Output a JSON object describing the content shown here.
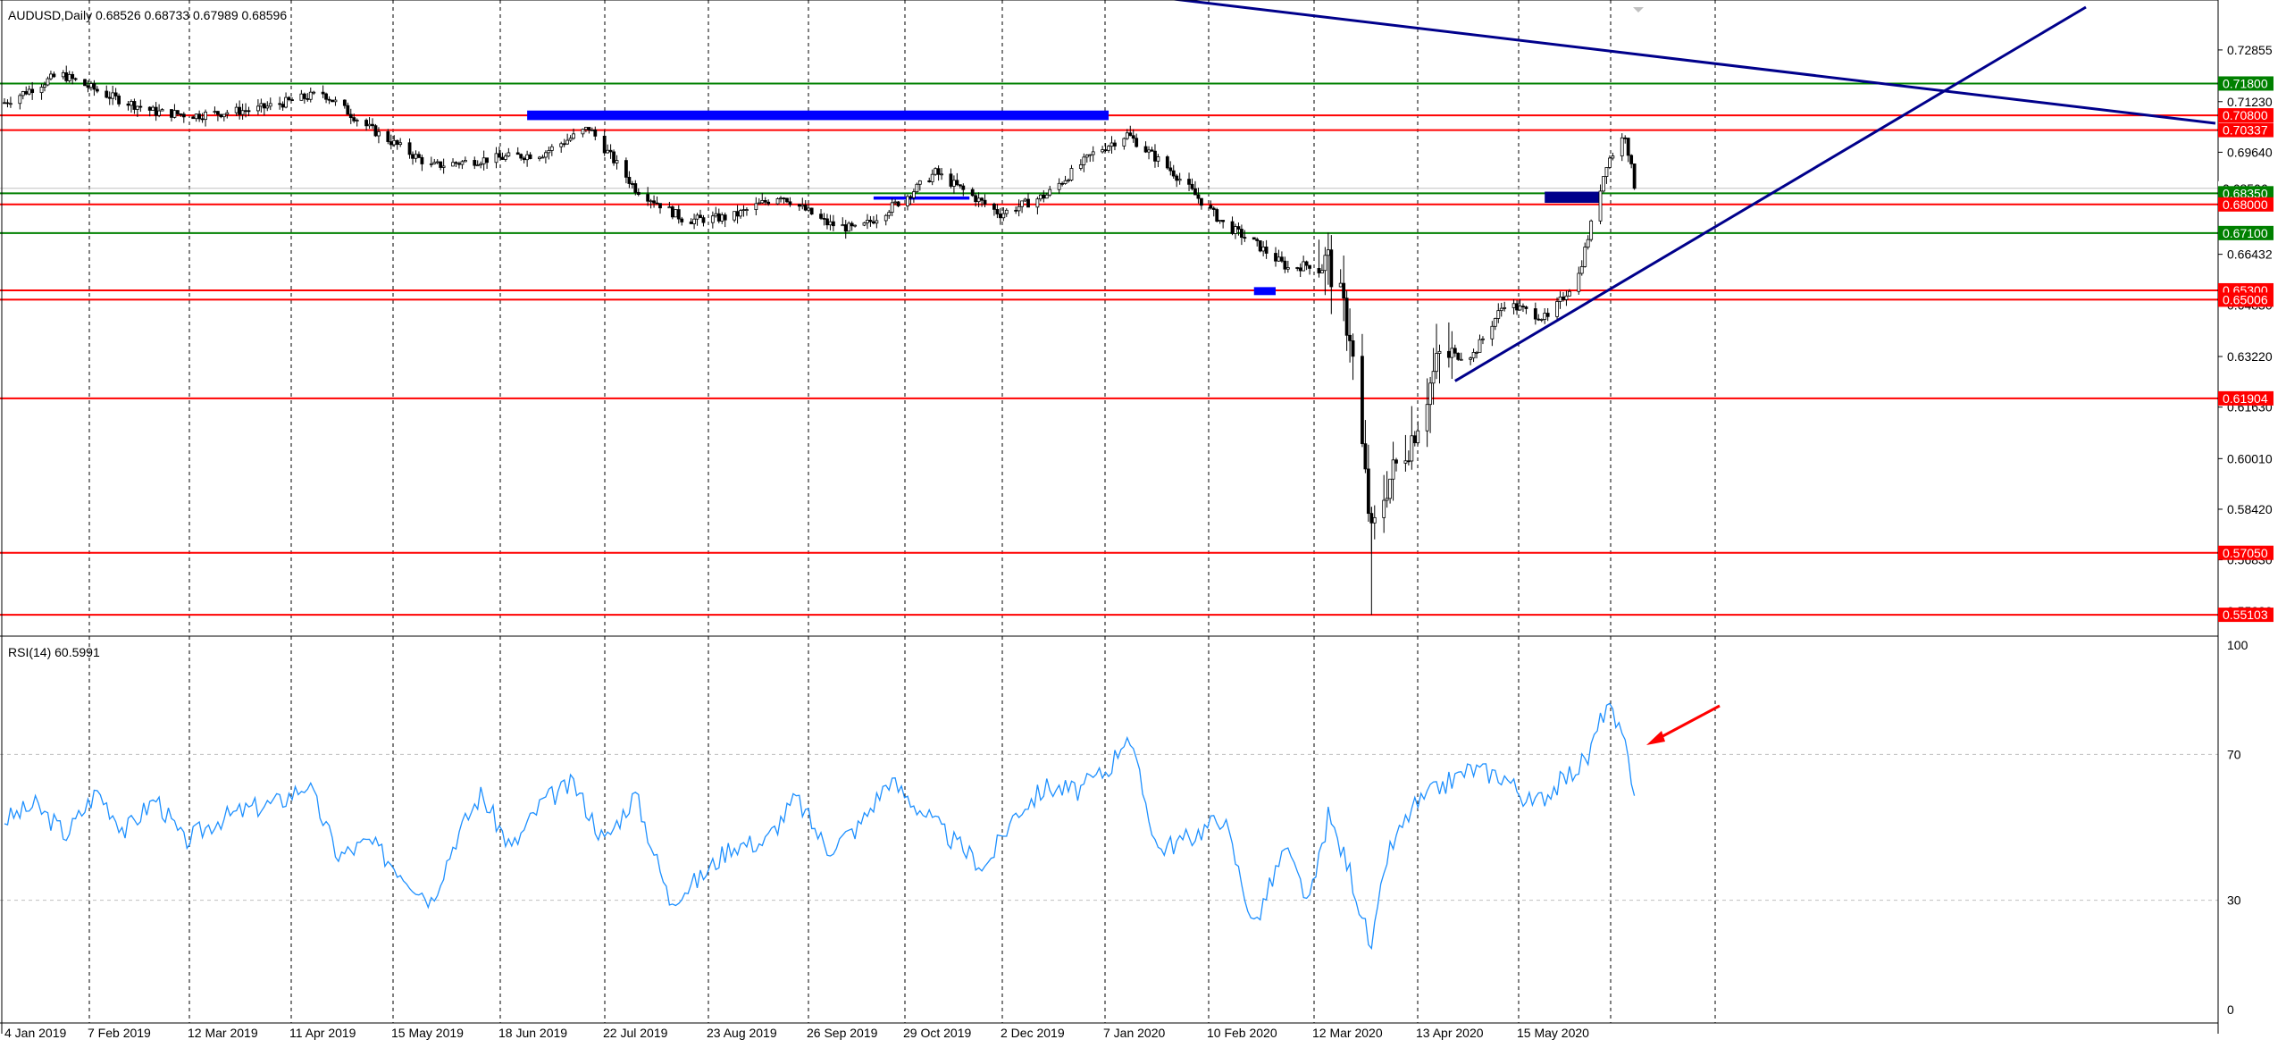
{
  "header": {
    "symbol_line": "AUDUSD,Daily  0.68526 0.68733 0.67989 0.68596"
  },
  "rsi_header": "RSI(14) 60.5991",
  "colors": {
    "background": "#ffffff",
    "candle": "#000000",
    "red_level": "#ff0000",
    "green_level": "#008000",
    "trendline": "#00008b",
    "zone": "#0000ff",
    "rsi_line": "#1e90ff",
    "grid": "#000000",
    "arrow": "#ff0000"
  },
  "icons": [
    "arrow-annotation"
  ],
  "chart_data": [
    {
      "type": "candlestick",
      "title": "AUDUSD,Daily  0.68526 0.68733 0.67989 0.68596",
      "ylim": [
        0.546,
        0.742
      ],
      "yticks": [
        "0.72855",
        "0.71230",
        "0.69640",
        "0.68050",
        "0.66432",
        "0.64830",
        "0.63220",
        "0.61630",
        "0.60010",
        "0.58420",
        "0.56830",
        "0.55220"
      ],
      "xticks": [
        "4 Jan 2019",
        "7 Feb 2019",
        "12 Mar 2019",
        "11 Apr 2019",
        "15 May 2019",
        "18 Jun 2019",
        "22 Jul 2019",
        "23 Aug 2019",
        "26 Sep 2019",
        "29 Oct 2019",
        "2 Dec 2019",
        "7 Jan 2020",
        "10 Feb 2020",
        "12 Mar 2020",
        "13 Apr 2020",
        "15 May 2020"
      ],
      "series": [
        {
          "kind": "close-keypoints",
          "x": [
            "2019-01-02",
            "2019-01-20",
            "2019-02-05",
            "2019-02-20",
            "2019-03-05",
            "2019-03-25",
            "2019-04-15",
            "2019-04-30",
            "2019-05-20",
            "2019-06-05",
            "2019-06-25",
            "2019-07-10",
            "2019-07-25",
            "2019-08-10",
            "2019-08-25",
            "2019-09-10",
            "2019-09-25",
            "2019-10-05",
            "2019-10-20",
            "2019-10-30",
            "2019-11-20",
            "2019-12-05",
            "2019-12-20",
            "2019-12-31",
            "2020-01-15",
            "2020-01-31",
            "2020-02-10",
            "2020-02-21",
            "2020-03-05",
            "2020-03-12",
            "2020-03-19",
            "2020-03-24",
            "2020-04-01",
            "2020-04-10",
            "2020-04-21",
            "2020-05-01",
            "2020-05-15",
            "2020-05-25",
            "2020-06-03",
            "2020-06-09",
            "2020-06-12"
          ],
          "values": [
            0.712,
            0.721,
            0.714,
            0.709,
            0.708,
            0.71,
            0.715,
            0.704,
            0.692,
            0.694,
            0.696,
            0.704,
            0.685,
            0.675,
            0.676,
            0.683,
            0.674,
            0.672,
            0.682,
            0.69,
            0.677,
            0.683,
            0.696,
            0.702,
            0.69,
            0.674,
            0.668,
            0.66,
            0.662,
            0.64,
            0.575,
            0.592,
            0.607,
            0.632,
            0.633,
            0.649,
            0.644,
            0.658,
            0.693,
            0.702,
            0.686
          ]
        }
      ],
      "horizontal_levels": {
        "red": [
          "0.70800",
          "0.70337",
          "0.68000",
          "0.65300",
          "0.65006",
          "0.61904",
          "0.57050",
          "0.55103"
        ],
        "green": [
          "0.71800",
          "0.68350",
          "0.67100"
        ]
      },
      "level_labels": [
        "0.71800",
        "0.70800",
        "0.70337",
        "0.68506",
        "0.68350",
        "0.68000",
        "0.67100",
        "0.65300",
        "0.65006",
        "0.61904",
        "0.57050",
        "0.55103"
      ]
    },
    {
      "type": "line",
      "title": "RSI(14) 60.5991",
      "ylim": [
        0,
        100
      ],
      "yticks": [
        "100",
        "70",
        "30",
        "0"
      ],
      "levels": [
        70,
        30
      ],
      "series": [
        {
          "x": [
            "2019-01-02",
            "2019-01-12",
            "2019-01-22",
            "2019-02-01",
            "2019-02-10",
            "2019-02-20",
            "2019-03-01",
            "2019-03-12",
            "2019-03-22",
            "2019-04-01",
            "2019-04-10",
            "2019-04-20",
            "2019-04-30",
            "2019-05-10",
            "2019-05-20",
            "2019-05-28",
            "2019-06-05",
            "2019-06-15",
            "2019-06-25",
            "2019-07-05",
            "2019-07-15",
            "2019-07-25",
            "2019-08-05",
            "2019-08-15",
            "2019-08-25",
            "2019-09-05",
            "2019-09-15",
            "2019-09-25",
            "2019-10-05",
            "2019-10-15",
            "2019-10-25",
            "2019-11-05",
            "2019-11-15",
            "2019-11-25",
            "2019-12-05",
            "2019-12-15",
            "2019-12-25",
            "2019-12-31",
            "2020-01-10",
            "2020-01-20",
            "2020-01-31",
            "2020-02-10",
            "2020-02-20",
            "2020-02-28",
            "2020-03-05",
            "2020-03-12",
            "2020-03-19",
            "2020-03-24",
            "2020-04-01",
            "2020-04-10",
            "2020-04-20",
            "2020-05-01",
            "2020-05-10",
            "2020-05-20",
            "2020-05-28",
            "2020-06-03",
            "2020-06-09",
            "2020-06-12"
          ],
          "values": [
            52,
            56,
            48,
            60,
            49,
            58,
            46,
            52,
            55,
            57,
            62,
            42,
            46,
            38,
            30,
            47,
            59,
            44,
            57,
            62,
            46,
            59,
            30,
            36,
            45,
            46,
            58,
            44,
            50,
            63,
            55,
            46,
            39,
            54,
            61,
            60,
            66,
            76,
            44,
            47,
            53,
            23,
            44,
            29,
            53,
            38,
            16,
            42,
            55,
            61,
            66,
            64,
            56,
            63,
            69,
            84,
            72,
            60.6
          ]
        }
      ]
    }
  ]
}
